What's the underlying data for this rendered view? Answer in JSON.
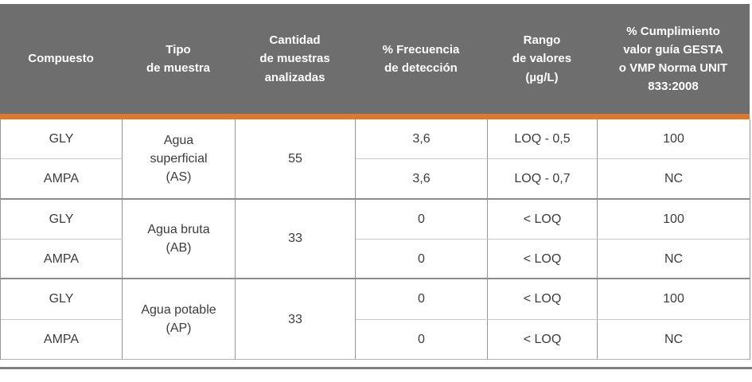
{
  "colors": {
    "header_bg": "#6e6e6e",
    "accent_orange": "#e0782b",
    "grid_line": "#979797",
    "body_text": "#3c3c3c",
    "bottom_rule": "#7f7f7f"
  },
  "table": {
    "headers": [
      "Compuesto",
      "Tipo\nde muestra",
      "Cantidad\nde muestras\nanalizadas",
      "% Frecuencia\nde detección",
      "Rango\nde valores\n(µg/L)",
      "% Cumplimiento\nvalor guía GESTA\no VMP Norma UNIT\n833:2008"
    ],
    "groups": [
      {
        "tipo": "Agua\nsuperficial\n(AS)",
        "cantidad": "55",
        "rows": [
          {
            "compuesto": "GLY",
            "frecuencia": "3,6",
            "rango": "LOQ - 0,5",
            "cumplimiento": "100"
          },
          {
            "compuesto": "AMPA",
            "frecuencia": "3,6",
            "rango": "LOQ - 0,7",
            "cumplimiento": "NC"
          }
        ]
      },
      {
        "tipo": "Agua bruta\n(AB)",
        "cantidad": "33",
        "rows": [
          {
            "compuesto": "GLY",
            "frecuencia": "0",
            "rango": "< LOQ",
            "cumplimiento": "100"
          },
          {
            "compuesto": "AMPA",
            "frecuencia": "0",
            "rango": "< LOQ",
            "cumplimiento": "NC"
          }
        ]
      },
      {
        "tipo": "Agua potable\n(AP)",
        "cantidad": "33",
        "rows": [
          {
            "compuesto": "GLY",
            "frecuencia": "0",
            "rango": "< LOQ",
            "cumplimiento": "100"
          },
          {
            "compuesto": "AMPA",
            "frecuencia": "0",
            "rango": "< LOQ",
            "cumplimiento": "NC"
          }
        ]
      }
    ]
  }
}
